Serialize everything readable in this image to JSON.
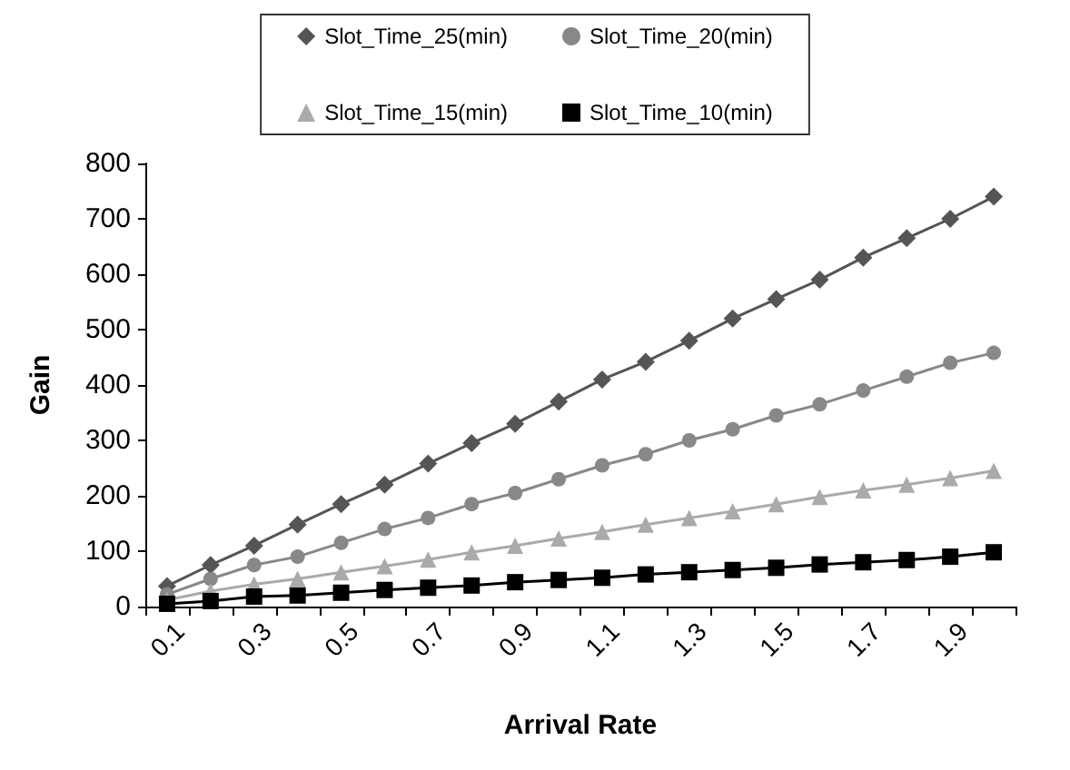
{
  "chart_data": {
    "type": "line",
    "xlabel": "Arrival Rate",
    "ylabel": "Gain",
    "categories": [
      "0.1",
      null,
      "0.3",
      null,
      "0.5",
      null,
      "0.7",
      null,
      "0.9",
      null,
      "1.1",
      null,
      "1.3",
      null,
      "1.5",
      null,
      "1.7",
      null,
      "1.9",
      null
    ],
    "series": [
      {
        "name": "Slot_Time_25(min)",
        "color": "#555555",
        "marker": "diamond",
        "values": [
          37,
          75,
          110,
          148,
          185,
          220,
          258,
          295,
          330,
          370,
          410,
          442,
          480,
          520,
          555,
          590,
          630,
          665,
          700,
          740
        ]
      },
      {
        "name": "Slot_Time_20(min)",
        "color": "#888888",
        "marker": "circle",
        "values": [
          22,
          50,
          75,
          90,
          115,
          140,
          160,
          185,
          205,
          230,
          255,
          275,
          300,
          320,
          345,
          365,
          390,
          415,
          440,
          458
        ]
      },
      {
        "name": "Slot_Time_15(min)",
        "color": "#aaaaaa",
        "marker": "triangle",
        "values": [
          12,
          28,
          40,
          50,
          62,
          73,
          85,
          98,
          110,
          123,
          135,
          148,
          160,
          172,
          185,
          198,
          210,
          220,
          232,
          245
        ]
      },
      {
        "name": "Slot_Time_10(min)",
        "color": "#000000",
        "marker": "square",
        "values": [
          5,
          10,
          18,
          20,
          25,
          30,
          34,
          38,
          44,
          48,
          52,
          58,
          62,
          66,
          70,
          76,
          80,
          84,
          90,
          98
        ]
      }
    ],
    "ylim": [
      0,
      800
    ],
    "yticks": [
      0,
      100,
      200,
      300,
      400,
      500,
      600,
      700,
      800
    ],
    "grid": false,
    "legend": "top"
  }
}
